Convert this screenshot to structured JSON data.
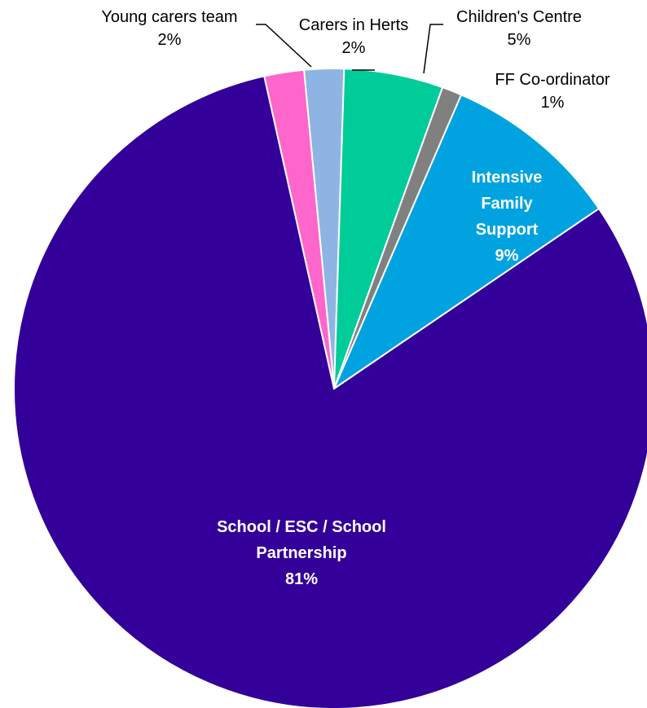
{
  "chart_data": {
    "type": "pie",
    "title": "",
    "start_angle_deg": -5.4,
    "direction": "clockwise",
    "slices": [
      {
        "label": "Carers in Herts",
        "display_lines": [
          "Carers in Herts"
        ],
        "value": 2,
        "value_label": "2%",
        "color": "#8EB4E3",
        "label_position": "outside"
      },
      {
        "label": "Children's Centre",
        "display_lines": [
          "Children's Centre"
        ],
        "value": 5,
        "value_label": "5%",
        "color": "#00CC99",
        "label_position": "outside"
      },
      {
        "label": "FF Co-ordinator",
        "display_lines": [
          "FF Co-ordinator"
        ],
        "value": 1,
        "value_label": "1%",
        "color": "#808080",
        "label_position": "outside"
      },
      {
        "label": "Intensive Family Support",
        "display_lines": [
          "Intensive",
          "Family",
          "Support"
        ],
        "value": 9,
        "value_label": "9%",
        "color": "#00A3E0",
        "label_position": "inside"
      },
      {
        "label": "School / ESC / School Partnership",
        "display_lines": [
          "School / ESC / School",
          "Partnership"
        ],
        "value": 81,
        "value_label": "81%",
        "color": "#330099",
        "label_position": "inside"
      },
      {
        "label": "Young carers team",
        "display_lines": [
          "Young carers team"
        ],
        "value": 2,
        "value_label": "2%",
        "color": "#FF66CC",
        "label_position": "outside"
      }
    ]
  }
}
